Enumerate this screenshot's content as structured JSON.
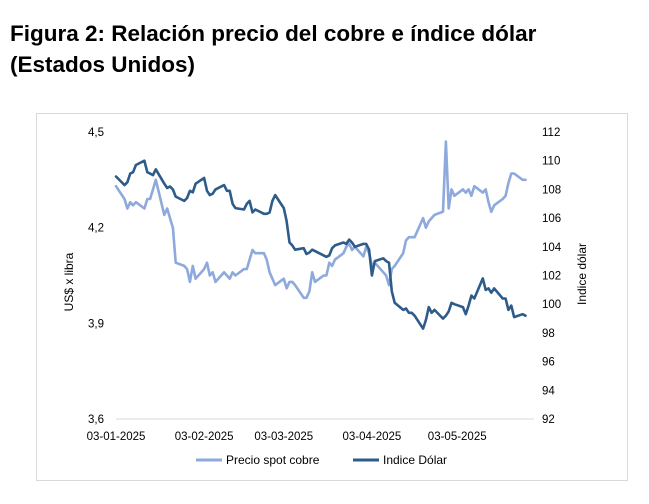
{
  "header": {
    "title_line1": "Figura 2: Relación precio del cobre e índice dólar",
    "title_line2": "(Estados Unidos)"
  },
  "chart_data": {
    "type": "line",
    "title": "Figura 2: Relación precio del cobre e índice dólar (Estados Unidos)",
    "ylabel_left": "US$ x libra",
    "ylabel_right": "Indice dólar",
    "ylim_left": [
      3.6,
      4.5
    ],
    "ylim_right": [
      92,
      112
    ],
    "yticks_left": [
      "4,5",
      "4,2",
      "3,9",
      "3,6"
    ],
    "yticks_right": [
      "112",
      "110",
      "108",
      "106",
      "104",
      "102",
      "100",
      "98",
      "96",
      "94",
      "92"
    ],
    "xticks": [
      "03-01-2025",
      "03-02-2025",
      "03-03-2025",
      "03-04-2025",
      "03-05-2025"
    ],
    "x_range": [
      "2025-01-03",
      "2025-05-30"
    ],
    "grid": false,
    "legend_position": "bottom",
    "series": [
      {
        "name": "Precio spot cobre",
        "axis": "left",
        "color": "#8ea9db",
        "points": [
          [
            "2025-01-03",
            4.33
          ],
          [
            "2025-01-06",
            4.29
          ],
          [
            "2025-01-07",
            4.26
          ],
          [
            "2025-01-08",
            4.28
          ],
          [
            "2025-01-09",
            4.27
          ],
          [
            "2025-01-10",
            4.28
          ],
          [
            "2025-01-13",
            4.26
          ],
          [
            "2025-01-14",
            4.29
          ],
          [
            "2025-01-15",
            4.29
          ],
          [
            "2025-01-16",
            4.32
          ],
          [
            "2025-01-17",
            4.35
          ],
          [
            "2025-01-20",
            4.24
          ],
          [
            "2025-01-21",
            4.26
          ],
          [
            "2025-01-22",
            4.23
          ],
          [
            "2025-01-23",
            4.2
          ],
          [
            "2025-01-24",
            4.09
          ],
          [
            "2025-01-27",
            4.08
          ],
          [
            "2025-01-28",
            4.07
          ],
          [
            "2025-01-29",
            4.03
          ],
          [
            "2025-01-30",
            4.08
          ],
          [
            "2025-01-31",
            4.04
          ],
          [
            "2025-02-03",
            4.07
          ],
          [
            "2025-02-04",
            4.09
          ],
          [
            "2025-02-05",
            4.05
          ],
          [
            "2025-02-06",
            4.06
          ],
          [
            "2025-02-07",
            4.03
          ],
          [
            "2025-02-10",
            4.06
          ],
          [
            "2025-02-11",
            4.05
          ],
          [
            "2025-02-12",
            4.04
          ],
          [
            "2025-02-13",
            4.06
          ],
          [
            "2025-02-14",
            4.05
          ],
          [
            "2025-02-17",
            4.07
          ],
          [
            "2025-02-18",
            4.07
          ],
          [
            "2025-02-19",
            4.1
          ],
          [
            "2025-02-20",
            4.13
          ],
          [
            "2025-02-21",
            4.12
          ],
          [
            "2025-02-24",
            4.12
          ],
          [
            "2025-02-25",
            4.1
          ],
          [
            "2025-02-26",
            4.06
          ],
          [
            "2025-02-27",
            4.04
          ],
          [
            "2025-02-28",
            4.02
          ],
          [
            "2025-03-03",
            4.04
          ],
          [
            "2025-03-04",
            4.01
          ],
          [
            "2025-03-05",
            4.03
          ],
          [
            "2025-03-06",
            4.03
          ],
          [
            "2025-03-07",
            4.02
          ],
          [
            "2025-03-10",
            3.98
          ],
          [
            "2025-03-11",
            3.98
          ],
          [
            "2025-03-12",
            4.0
          ],
          [
            "2025-03-13",
            4.06
          ],
          [
            "2025-03-14",
            4.03
          ],
          [
            "2025-03-17",
            4.05
          ],
          [
            "2025-03-18",
            4.05
          ],
          [
            "2025-03-19",
            4.09
          ],
          [
            "2025-03-20",
            4.08
          ],
          [
            "2025-03-21",
            4.1
          ],
          [
            "2025-03-24",
            4.12
          ],
          [
            "2025-03-25",
            4.14
          ],
          [
            "2025-03-26",
            4.15
          ],
          [
            "2025-03-27",
            4.13
          ],
          [
            "2025-03-28",
            4.14
          ],
          [
            "2025-03-31",
            4.11
          ],
          [
            "2025-04-01",
            4.14
          ],
          [
            "2025-04-02",
            4.12
          ],
          [
            "2025-04-03",
            4.08
          ],
          [
            "2025-04-04",
            4.09
          ],
          [
            "2025-04-07",
            4.06
          ],
          [
            "2025-04-08",
            4.05
          ],
          [
            "2025-04-09",
            4.02
          ],
          [
            "2025-04-10",
            4.07
          ],
          [
            "2025-04-11",
            4.08
          ],
          [
            "2025-04-14",
            4.12
          ],
          [
            "2025-04-15",
            4.16
          ],
          [
            "2025-04-16",
            4.17
          ],
          [
            "2025-04-17",
            4.17
          ],
          [
            "2025-04-18",
            4.17
          ],
          [
            "2025-04-21",
            4.23
          ],
          [
            "2025-04-22",
            4.2
          ],
          [
            "2025-04-23",
            4.22
          ],
          [
            "2025-04-24",
            4.23
          ],
          [
            "2025-04-25",
            4.24
          ],
          [
            "2025-04-28",
            4.25
          ],
          [
            "2025-04-29",
            4.47
          ],
          [
            "2025-04-30",
            4.26
          ],
          [
            "2025-05-01",
            4.32
          ],
          [
            "2025-05-02",
            4.3
          ],
          [
            "2025-05-05",
            4.32
          ],
          [
            "2025-05-06",
            4.31
          ],
          [
            "2025-05-07",
            4.32
          ],
          [
            "2025-05-08",
            4.3
          ],
          [
            "2025-05-09",
            4.33
          ],
          [
            "2025-05-12",
            4.31
          ],
          [
            "2025-05-13",
            4.32
          ],
          [
            "2025-05-14",
            4.28
          ],
          [
            "2025-05-15",
            4.25
          ],
          [
            "2025-05-16",
            4.27
          ],
          [
            "2025-05-19",
            4.29
          ],
          [
            "2025-05-20",
            4.3
          ],
          [
            "2025-05-21",
            4.34
          ],
          [
            "2025-05-22",
            4.37
          ],
          [
            "2025-05-23",
            4.37
          ],
          [
            "2025-05-26",
            4.35
          ],
          [
            "2025-05-27",
            4.35
          ]
        ]
      },
      {
        "name": "Indice Dólar",
        "axis": "right",
        "color": "#2e5c8a",
        "points": [
          [
            "2025-01-03",
            108.9
          ],
          [
            "2025-01-06",
            108.3
          ],
          [
            "2025-01-07",
            108.5
          ],
          [
            "2025-01-08",
            109.1
          ],
          [
            "2025-01-09",
            109.2
          ],
          [
            "2025-01-10",
            109.7
          ],
          [
            "2025-01-13",
            110.0
          ],
          [
            "2025-01-14",
            109.2
          ],
          [
            "2025-01-15",
            109.1
          ],
          [
            "2025-01-16",
            109.0
          ],
          [
            "2025-01-17",
            109.4
          ],
          [
            "2025-01-20",
            108.4
          ],
          [
            "2025-01-21",
            108.1
          ],
          [
            "2025-01-22",
            108.2
          ],
          [
            "2025-01-23",
            108.0
          ],
          [
            "2025-01-24",
            107.5
          ],
          [
            "2025-01-27",
            107.2
          ],
          [
            "2025-01-28",
            107.4
          ],
          [
            "2025-01-29",
            107.9
          ],
          [
            "2025-01-30",
            107.8
          ],
          [
            "2025-01-31",
            108.4
          ],
          [
            "2025-02-03",
            108.8
          ],
          [
            "2025-02-04",
            107.9
          ],
          [
            "2025-02-05",
            107.6
          ],
          [
            "2025-02-06",
            107.7
          ],
          [
            "2025-02-07",
            108.0
          ],
          [
            "2025-02-10",
            108.3
          ],
          [
            "2025-02-11",
            107.9
          ],
          [
            "2025-02-12",
            107.9
          ],
          [
            "2025-02-13",
            107.0
          ],
          [
            "2025-02-14",
            106.7
          ],
          [
            "2025-02-17",
            106.6
          ],
          [
            "2025-02-18",
            107.0
          ],
          [
            "2025-02-19",
            107.2
          ],
          [
            "2025-02-20",
            106.4
          ],
          [
            "2025-02-21",
            106.6
          ],
          [
            "2025-02-24",
            106.3
          ],
          [
            "2025-02-25",
            106.3
          ],
          [
            "2025-02-26",
            106.4
          ],
          [
            "2025-02-27",
            107.2
          ],
          [
            "2025-02-28",
            107.6
          ],
          [
            "2025-03-03",
            106.7
          ],
          [
            "2025-03-04",
            105.8
          ],
          [
            "2025-03-05",
            104.3
          ],
          [
            "2025-03-06",
            104.1
          ],
          [
            "2025-03-07",
            103.8
          ],
          [
            "2025-03-10",
            103.9
          ],
          [
            "2025-03-11",
            103.5
          ],
          [
            "2025-03-12",
            103.6
          ],
          [
            "2025-03-13",
            103.8
          ],
          [
            "2025-03-14",
            103.7
          ],
          [
            "2025-03-17",
            103.4
          ],
          [
            "2025-03-18",
            103.3
          ],
          [
            "2025-03-19",
            103.4
          ],
          [
            "2025-03-20",
            103.9
          ],
          [
            "2025-03-21",
            104.1
          ],
          [
            "2025-03-24",
            104.3
          ],
          [
            "2025-03-25",
            104.2
          ],
          [
            "2025-03-26",
            104.5
          ],
          [
            "2025-03-27",
            104.3
          ],
          [
            "2025-03-28",
            104.0
          ],
          [
            "2025-03-31",
            104.2
          ],
          [
            "2025-04-01",
            104.2
          ],
          [
            "2025-04-02",
            103.8
          ],
          [
            "2025-04-03",
            102.0
          ],
          [
            "2025-04-04",
            103.0
          ],
          [
            "2025-04-07",
            103.2
          ],
          [
            "2025-04-08",
            103.0
          ],
          [
            "2025-04-09",
            102.9
          ],
          [
            "2025-04-10",
            100.9
          ],
          [
            "2025-04-11",
            100.1
          ],
          [
            "2025-04-14",
            99.6
          ],
          [
            "2025-04-15",
            99.7
          ],
          [
            "2025-04-16",
            99.4
          ],
          [
            "2025-04-17",
            99.4
          ],
          [
            "2025-04-18",
            99.2
          ],
          [
            "2025-04-21",
            98.3
          ],
          [
            "2025-04-22",
            98.9
          ],
          [
            "2025-04-23",
            99.8
          ],
          [
            "2025-04-24",
            99.4
          ],
          [
            "2025-04-25",
            99.6
          ],
          [
            "2025-04-28",
            99.0
          ],
          [
            "2025-04-29",
            99.2
          ],
          [
            "2025-04-30",
            99.5
          ],
          [
            "2025-05-01",
            100.1
          ],
          [
            "2025-05-02",
            100.0
          ],
          [
            "2025-05-05",
            99.8
          ],
          [
            "2025-05-06",
            99.3
          ],
          [
            "2025-05-07",
            99.9
          ],
          [
            "2025-05-08",
            100.6
          ],
          [
            "2025-05-09",
            100.4
          ],
          [
            "2025-05-12",
            101.8
          ],
          [
            "2025-05-13",
            101.0
          ],
          [
            "2025-05-14",
            101.1
          ],
          [
            "2025-05-15",
            100.8
          ],
          [
            "2025-05-16",
            101.1
          ],
          [
            "2025-05-19",
            100.4
          ],
          [
            "2025-05-20",
            100.4
          ],
          [
            "2025-05-21",
            99.6
          ],
          [
            "2025-05-22",
            99.9
          ],
          [
            "2025-05-23",
            99.1
          ],
          [
            "2025-05-26",
            99.3
          ],
          [
            "2025-05-27",
            99.2
          ]
        ]
      }
    ]
  }
}
